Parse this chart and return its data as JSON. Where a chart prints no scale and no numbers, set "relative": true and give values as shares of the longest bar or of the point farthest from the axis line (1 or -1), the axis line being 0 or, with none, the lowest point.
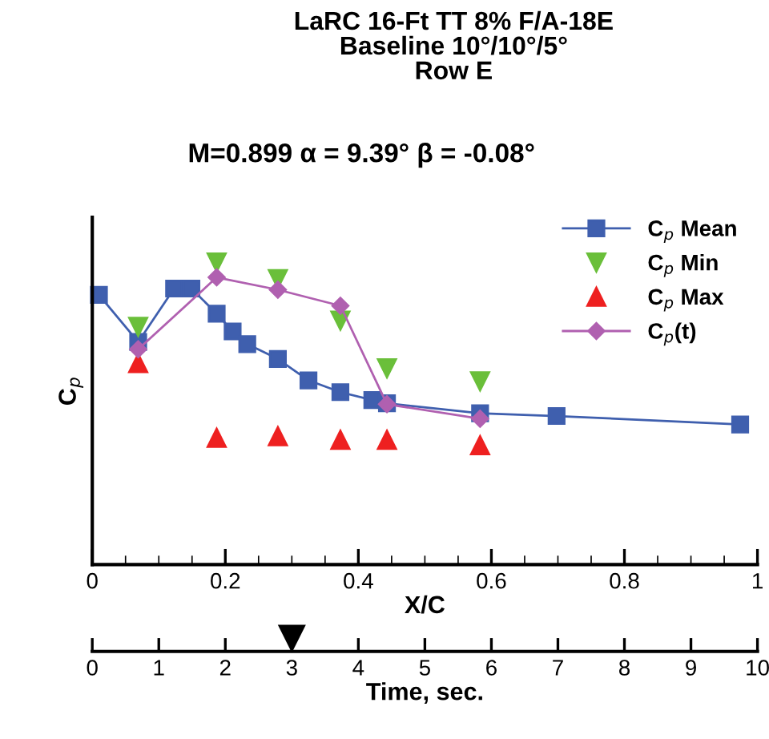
{
  "chart_data": {
    "type": "line",
    "title": "LaRC 16-Ft TT 8% F/A-18E\nBaseline 10°/10°/5°\nRow E",
    "subtitle": "M=0.899 α = 9.39° β = -0.08°",
    "xlabel": "X/C",
    "ylabel": "C$_{p}$",
    "x2label": "Time, sec.",
    "relative": true,
    "xlim": [
      0,
      1
    ],
    "xticks": [
      0,
      0.2,
      0.4,
      0.6,
      0.8,
      1
    ],
    "x2lim": [
      0,
      10
    ],
    "x2ticks": [
      0,
      1,
      2,
      3,
      4,
      5,
      6,
      7,
      8,
      9,
      10
    ],
    "legend": "top right",
    "grid": false,
    "series": [
      {
        "name": "C$_{p}$ Mean",
        "marker": "square",
        "color": "#3f5fae",
        "x": [
          0.01,
          0.069,
          0.123,
          0.149,
          0.187,
          0.211,
          0.233,
          0.279,
          0.325,
          0.373,
          0.421,
          0.443,
          0.583,
          0.698,
          0.974
        ],
        "values": [
          0.893,
          0.737,
          0.914,
          0.914,
          0.831,
          0.772,
          0.73,
          0.681,
          0.61,
          0.571,
          0.545,
          0.534,
          0.501,
          0.492,
          0.464
        ]
      },
      {
        "name": "C$_{p}$ Min",
        "type": "scatter",
        "marker": "triangle_down",
        "color": "#6abf3a",
        "x": [
          0.069,
          0.187,
          0.279,
          0.373,
          0.443,
          0.583
        ],
        "values": [
          0.787,
          1.0,
          0.945,
          0.808,
          0.65,
          0.607
        ]
      },
      {
        "name": "C$_{p}$ Max",
        "type": "scatter",
        "marker": "triangle",
        "color": "#ee2020",
        "x": [
          0.069,
          0.187,
          0.279,
          0.373,
          0.443,
          0.583
        ],
        "values": [
          0.667,
          0.42,
          0.425,
          0.413,
          0.413,
          0.395
        ]
      },
      {
        "name": "C$_{p}$(t)",
        "marker": "diamond",
        "color": "#b060b0",
        "x": [
          0.069,
          0.187,
          0.279,
          0.373,
          0.443,
          0.583
        ],
        "values": [
          0.713,
          0.951,
          0.91,
          0.857,
          0.531,
          0.483
        ]
      }
    ]
  }
}
